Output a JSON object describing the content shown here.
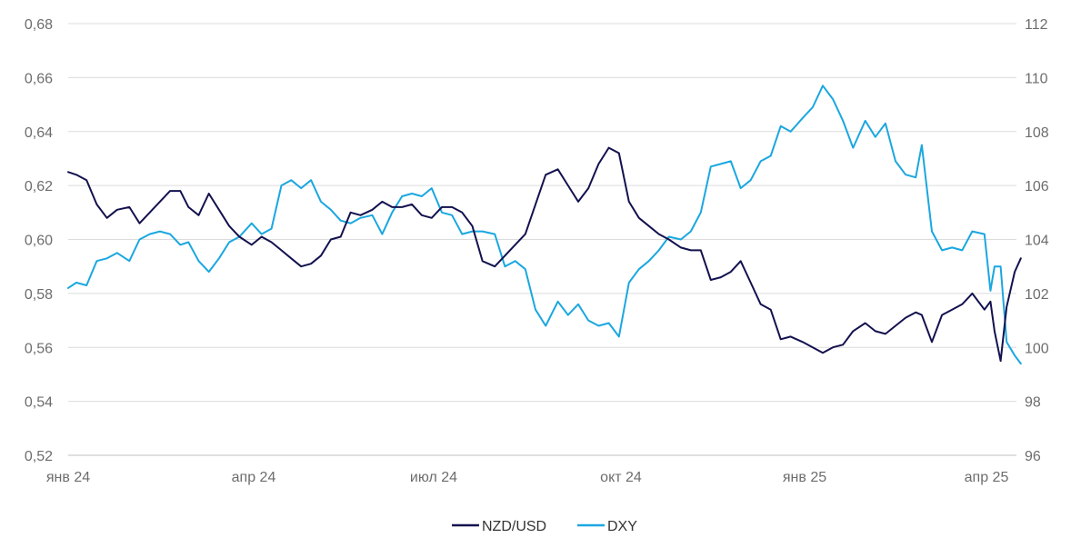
{
  "chart_data": {
    "type": "line",
    "title": "",
    "xlabel": "",
    "ylabel": "",
    "x_ticks": [
      "янв 24",
      "апр 24",
      "июл 24",
      "окт 24",
      "янв 25",
      "апр 25"
    ],
    "y_left": {
      "ticks": [
        "0,52",
        "0,54",
        "0,56",
        "0,58",
        "0,60",
        "0,62",
        "0,64",
        "0,66",
        "0,68"
      ],
      "range": [
        0.52,
        0.68
      ]
    },
    "y_right": {
      "ticks": [
        "96",
        "98",
        "100",
        "102",
        "104",
        "106",
        "108",
        "110",
        "112"
      ],
      "range": [
        96,
        112
      ]
    },
    "grid": true,
    "legend_position": "bottom",
    "x_range": [
      "2024-01-01",
      "2025-04-18"
    ],
    "series": [
      {
        "name": "NZD/USD",
        "axis": "left",
        "color": "#13114e",
        "points": [
          [
            "2024-01-01",
            0.625
          ],
          [
            "2024-01-05",
            0.624
          ],
          [
            "2024-01-10",
            0.622
          ],
          [
            "2024-01-15",
            0.613
          ],
          [
            "2024-01-20",
            0.608
          ],
          [
            "2024-01-25",
            0.611
          ],
          [
            "2024-01-31",
            0.612
          ],
          [
            "2024-02-05",
            0.606
          ],
          [
            "2024-02-10",
            0.61
          ],
          [
            "2024-02-15",
            0.614
          ],
          [
            "2024-02-20",
            0.618
          ],
          [
            "2024-02-25",
            0.618
          ],
          [
            "2024-02-29",
            0.612
          ],
          [
            "2024-03-05",
            0.609
          ],
          [
            "2024-03-10",
            0.617
          ],
          [
            "2024-03-15",
            0.611
          ],
          [
            "2024-03-20",
            0.605
          ],
          [
            "2024-03-25",
            0.601
          ],
          [
            "2024-03-31",
            0.598
          ],
          [
            "2024-04-05",
            0.601
          ],
          [
            "2024-04-10",
            0.599
          ],
          [
            "2024-04-15",
            0.596
          ],
          [
            "2024-04-20",
            0.593
          ],
          [
            "2024-04-25",
            0.59
          ],
          [
            "2024-04-30",
            0.591
          ],
          [
            "2024-05-05",
            0.594
          ],
          [
            "2024-05-10",
            0.6
          ],
          [
            "2024-05-15",
            0.601
          ],
          [
            "2024-05-20",
            0.61
          ],
          [
            "2024-05-25",
            0.609
          ],
          [
            "2024-05-31",
            0.611
          ],
          [
            "2024-06-05",
            0.614
          ],
          [
            "2024-06-10",
            0.612
          ],
          [
            "2024-06-15",
            0.612
          ],
          [
            "2024-06-20",
            0.613
          ],
          [
            "2024-06-25",
            0.609
          ],
          [
            "2024-06-30",
            0.608
          ],
          [
            "2024-07-05",
            0.612
          ],
          [
            "2024-07-10",
            0.612
          ],
          [
            "2024-07-15",
            0.61
          ],
          [
            "2024-07-20",
            0.605
          ],
          [
            "2024-07-25",
            0.592
          ],
          [
            "2024-07-31",
            0.59
          ],
          [
            "2024-08-05",
            0.594
          ],
          [
            "2024-08-10",
            0.598
          ],
          [
            "2024-08-15",
            0.602
          ],
          [
            "2024-08-20",
            0.613
          ],
          [
            "2024-08-25",
            0.624
          ],
          [
            "2024-08-31",
            0.626
          ],
          [
            "2024-09-05",
            0.62
          ],
          [
            "2024-09-10",
            0.614
          ],
          [
            "2024-09-15",
            0.619
          ],
          [
            "2024-09-20",
            0.628
          ],
          [
            "2024-09-25",
            0.634
          ],
          [
            "2024-09-30",
            0.632
          ],
          [
            "2024-10-05",
            0.614
          ],
          [
            "2024-10-10",
            0.608
          ],
          [
            "2024-10-15",
            0.605
          ],
          [
            "2024-10-20",
            0.602
          ],
          [
            "2024-10-25",
            0.6
          ],
          [
            "2024-10-31",
            0.597
          ],
          [
            "2024-11-05",
            0.596
          ],
          [
            "2024-11-10",
            0.596
          ],
          [
            "2024-11-15",
            0.585
          ],
          [
            "2024-11-20",
            0.586
          ],
          [
            "2024-11-25",
            0.588
          ],
          [
            "2024-11-30",
            0.592
          ],
          [
            "2024-12-05",
            0.584
          ],
          [
            "2024-12-10",
            0.576
          ],
          [
            "2024-12-15",
            0.574
          ],
          [
            "2024-12-20",
            0.563
          ],
          [
            "2024-12-25",
            0.564
          ],
          [
            "2024-12-31",
            0.562
          ],
          [
            "2025-01-05",
            0.56
          ],
          [
            "2025-01-10",
            0.558
          ],
          [
            "2025-01-15",
            0.56
          ],
          [
            "2025-01-20",
            0.561
          ],
          [
            "2025-01-25",
            0.566
          ],
          [
            "2025-01-31",
            0.569
          ],
          [
            "2025-02-05",
            0.566
          ],
          [
            "2025-02-10",
            0.565
          ],
          [
            "2025-02-15",
            0.568
          ],
          [
            "2025-02-20",
            0.571
          ],
          [
            "2025-02-25",
            0.573
          ],
          [
            "2025-02-28",
            0.572
          ],
          [
            "2025-03-05",
            0.562
          ],
          [
            "2025-03-10",
            0.572
          ],
          [
            "2025-03-15",
            0.574
          ],
          [
            "2025-03-20",
            0.576
          ],
          [
            "2025-03-25",
            0.58
          ],
          [
            "2025-03-31",
            0.574
          ],
          [
            "2025-04-03",
            0.577
          ],
          [
            "2025-04-05",
            0.566
          ],
          [
            "2025-04-08",
            0.555
          ],
          [
            "2025-04-11",
            0.575
          ],
          [
            "2025-04-15",
            0.588
          ],
          [
            "2025-04-18",
            0.593
          ]
        ]
      },
      {
        "name": "DXY",
        "axis": "right",
        "color": "#1aa7e0",
        "points": [
          [
            "2024-01-01",
            102.2
          ],
          [
            "2024-01-05",
            102.4
          ],
          [
            "2024-01-10",
            102.3
          ],
          [
            "2024-01-15",
            103.2
          ],
          [
            "2024-01-20",
            103.3
          ],
          [
            "2024-01-25",
            103.5
          ],
          [
            "2024-01-31",
            103.2
          ],
          [
            "2024-02-05",
            104.0
          ],
          [
            "2024-02-10",
            104.2
          ],
          [
            "2024-02-15",
            104.3
          ],
          [
            "2024-02-20",
            104.2
          ],
          [
            "2024-02-25",
            103.8
          ],
          [
            "2024-02-29",
            103.9
          ],
          [
            "2024-03-05",
            103.2
          ],
          [
            "2024-03-10",
            102.8
          ],
          [
            "2024-03-15",
            103.3
          ],
          [
            "2024-03-20",
            103.9
          ],
          [
            "2024-03-25",
            104.1
          ],
          [
            "2024-03-31",
            104.6
          ],
          [
            "2024-04-05",
            104.2
          ],
          [
            "2024-04-10",
            104.4
          ],
          [
            "2024-04-15",
            106.0
          ],
          [
            "2024-04-20",
            106.2
          ],
          [
            "2024-04-25",
            105.9
          ],
          [
            "2024-04-30",
            106.2
          ],
          [
            "2024-05-05",
            105.4
          ],
          [
            "2024-05-10",
            105.1
          ],
          [
            "2024-05-15",
            104.7
          ],
          [
            "2024-05-20",
            104.6
          ],
          [
            "2024-05-25",
            104.8
          ],
          [
            "2024-05-31",
            104.9
          ],
          [
            "2024-06-05",
            104.2
          ],
          [
            "2024-06-10",
            105.0
          ],
          [
            "2024-06-15",
            105.6
          ],
          [
            "2024-06-20",
            105.7
          ],
          [
            "2024-06-25",
            105.6
          ],
          [
            "2024-06-30",
            105.9
          ],
          [
            "2024-07-05",
            105.0
          ],
          [
            "2024-07-10",
            104.9
          ],
          [
            "2024-07-15",
            104.2
          ],
          [
            "2024-07-20",
            104.3
          ],
          [
            "2024-07-25",
            104.3
          ],
          [
            "2024-07-31",
            104.2
          ],
          [
            "2024-08-05",
            103.0
          ],
          [
            "2024-08-10",
            103.2
          ],
          [
            "2024-08-15",
            102.9
          ],
          [
            "2024-08-20",
            101.4
          ],
          [
            "2024-08-25",
            100.8
          ],
          [
            "2024-08-31",
            101.7
          ],
          [
            "2024-09-05",
            101.2
          ],
          [
            "2024-09-10",
            101.6
          ],
          [
            "2024-09-15",
            101.0
          ],
          [
            "2024-09-20",
            100.8
          ],
          [
            "2024-09-25",
            100.9
          ],
          [
            "2024-09-30",
            100.4
          ],
          [
            "2024-10-05",
            102.4
          ],
          [
            "2024-10-10",
            102.9
          ],
          [
            "2024-10-15",
            103.2
          ],
          [
            "2024-10-20",
            103.6
          ],
          [
            "2024-10-25",
            104.1
          ],
          [
            "2024-10-31",
            104.0
          ],
          [
            "2024-11-05",
            104.3
          ],
          [
            "2024-11-10",
            105.0
          ],
          [
            "2024-11-15",
            106.7
          ],
          [
            "2024-11-20",
            106.8
          ],
          [
            "2024-11-25",
            106.9
          ],
          [
            "2024-11-30",
            105.9
          ],
          [
            "2024-12-05",
            106.2
          ],
          [
            "2024-12-10",
            106.9
          ],
          [
            "2024-12-15",
            107.1
          ],
          [
            "2024-12-20",
            108.2
          ],
          [
            "2024-12-25",
            108.0
          ],
          [
            "2024-12-31",
            108.5
          ],
          [
            "2025-01-05",
            108.9
          ],
          [
            "2025-01-10",
            109.7
          ],
          [
            "2025-01-15",
            109.2
          ],
          [
            "2025-01-20",
            108.4
          ],
          [
            "2025-01-25",
            107.4
          ],
          [
            "2025-01-31",
            108.4
          ],
          [
            "2025-02-05",
            107.8
          ],
          [
            "2025-02-10",
            108.3
          ],
          [
            "2025-02-15",
            106.9
          ],
          [
            "2025-02-20",
            106.4
          ],
          [
            "2025-02-25",
            106.3
          ],
          [
            "2025-02-28",
            107.5
          ],
          [
            "2025-03-05",
            104.3
          ],
          [
            "2025-03-10",
            103.6
          ],
          [
            "2025-03-15",
            103.7
          ],
          [
            "2025-03-20",
            103.6
          ],
          [
            "2025-03-25",
            104.3
          ],
          [
            "2025-03-31",
            104.2
          ],
          [
            "2025-04-03",
            102.1
          ],
          [
            "2025-04-05",
            103.0
          ],
          [
            "2025-04-08",
            103.0
          ],
          [
            "2025-04-11",
            100.2
          ],
          [
            "2025-04-15",
            99.7
          ],
          [
            "2025-04-18",
            99.4
          ]
        ]
      }
    ]
  }
}
